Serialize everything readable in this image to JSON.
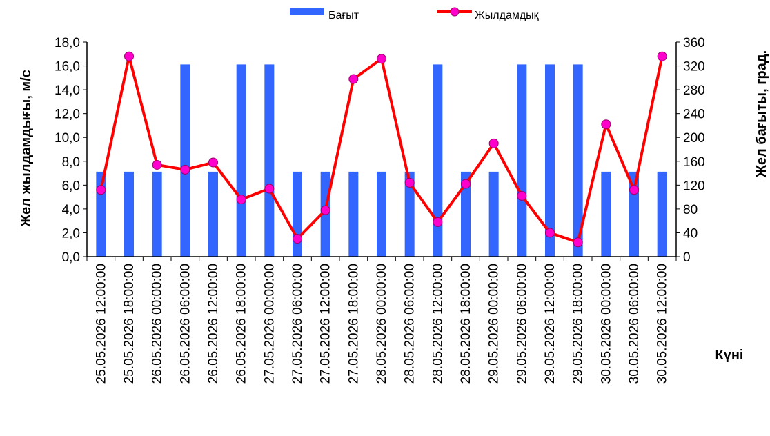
{
  "chart_data": {
    "type": "bar+line",
    "categories": [
      "25.05.2026 12:00:00",
      "25.05.2026 18:00:00",
      "26.05.2026 00:00:00",
      "26.05.2026 06:00:00",
      "26.05.2026 12:00:00",
      "26.05.2026 18:00:00",
      "27.05.2026 00:00:00",
      "27.05.2026 06:00:00",
      "27.05.2026 12:00:00",
      "27.05.2026 18:00:00",
      "28.05.2026 00:00:00",
      "28.05.2026 06:00:00",
      "28.05.2026 12:00:00",
      "28.05.2026 18:00:00",
      "29.05.2026 00:00:00",
      "29.05.2026 06:00:00",
      "29.05.2026 12:00:00",
      "29.05.2026 18:00:00",
      "30.05.2026 00:00:00",
      "30.05.2026 06:00:00",
      "30.05.2026 12:00:00"
    ],
    "series": [
      {
        "name": "Бағыт",
        "type": "bar",
        "axis": "right",
        "color": "#3366ff",
        "values": [
          142.5,
          142.5,
          142.5,
          322.5,
          142.5,
          322.5,
          322.5,
          142.5,
          142.5,
          142.5,
          142.5,
          142.5,
          322.5,
          142.5,
          142.5,
          322.5,
          322.5,
          322.5,
          142.5,
          142.5,
          142.5
        ]
      },
      {
        "name": "Жылдамдық",
        "type": "line",
        "axis": "left",
        "color": "#ff0000",
        "marker_color": "#ff00cc",
        "values": [
          5.6,
          16.8,
          7.7,
          7.3,
          7.9,
          4.8,
          5.7,
          1.5,
          3.9,
          14.9,
          16.6,
          6.2,
          2.9,
          6.1,
          9.5,
          5.1,
          2.0,
          1.2,
          11.1,
          5.6,
          16.8
        ]
      }
    ],
    "ylabel": "Жел жылдамдығы, м/с",
    "y2label": "Жел бағыты, град.",
    "xlabel": "Күні",
    "ylim": [
      0,
      18
    ],
    "y2lim": [
      0,
      360
    ],
    "yticks": [
      "0,0",
      "2,0",
      "4,0",
      "6,0",
      "8,0",
      "10,0",
      "12,0",
      "14,0",
      "16,0",
      "18,0"
    ],
    "y2ticks": [
      "0",
      "40",
      "80",
      "120",
      "160",
      "200",
      "240",
      "280",
      "320",
      "360"
    ],
    "legend_position": "top-center",
    "grid": false
  }
}
